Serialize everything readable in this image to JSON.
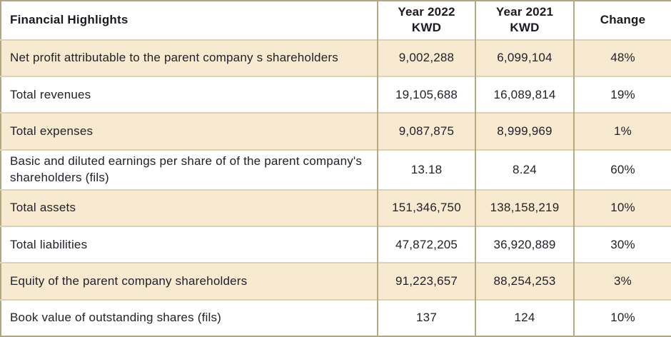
{
  "table": {
    "columns": [
      {
        "label": "Financial Highlights"
      },
      {
        "label": "Year 2022\nKWD"
      },
      {
        "label": "Year 2021\nKWD"
      },
      {
        "label": "Change"
      }
    ],
    "rows": [
      {
        "label": "Net profit attributable to the parent company s shareholders",
        "y2022": "9,002,288",
        "y2021": "6,099,104",
        "change": "48%"
      },
      {
        "label": "Total revenues",
        "y2022": "19,105,688",
        "y2021": "16,089,814",
        "change": "19%"
      },
      {
        "label": "Total expenses",
        "y2022": "9,087,875",
        "y2021": "8,999,969",
        "change": "1%"
      },
      {
        "label": "Basic and diluted earnings per share of of the parent company's shareholders (fils)",
        "y2022": "13.18",
        "y2021": "8.24",
        "change": "60%"
      },
      {
        "label": "Total assets",
        "y2022": "151,346,750",
        "y2021": "138,158,219",
        "change": "10%"
      },
      {
        "label": "Total liabilities",
        "y2022": "47,872,205",
        "y2021": "36,920,889",
        "change": "30%"
      },
      {
        "label": "Equity of the parent company shareholders",
        "y2022": "91,223,657",
        "y2021": "88,254,253",
        "change": "3%"
      },
      {
        "label": "Book value of outstanding shares (fils)",
        "y2022": "137",
        "y2021": "124",
        "change": "10%"
      }
    ]
  },
  "colors": {
    "row_cream": "#f7ead0",
    "row_white": "#ffffff",
    "border_outer": "#b1a77f",
    "border_vertical": "#b5aa7e",
    "border_horizontal": "#ddd3ae",
    "text": "#232129"
  }
}
